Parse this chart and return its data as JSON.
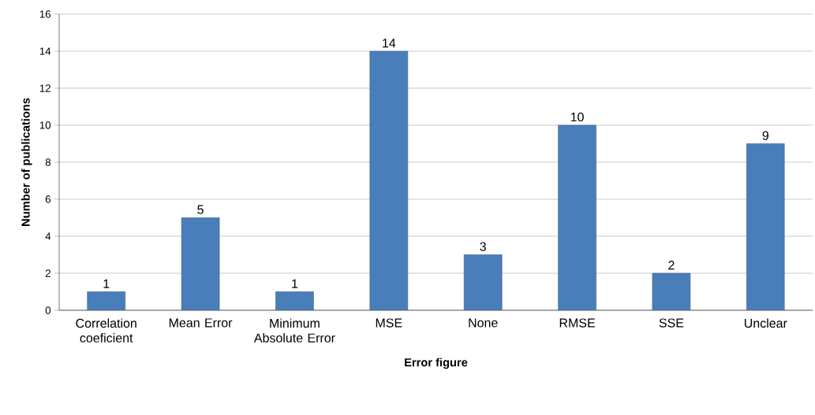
{
  "chart_data": {
    "type": "bar",
    "xlabel": "Error figure",
    "ylabel": "Number of publications",
    "categories": [
      "Correlation coeficient",
      "Mean Error",
      "Minimum Absolute Error",
      "MSE",
      "None",
      "RMSE",
      "SSE",
      "Unclear"
    ],
    "values": [
      1,
      5,
      1,
      14,
      3,
      10,
      2,
      9
    ],
    "color": "#4a7ebb",
    "ylim": [
      0,
      16
    ],
    "yticks": [
      0,
      2,
      4,
      6,
      8,
      10,
      12,
      14,
      16
    ],
    "grid": "y",
    "data_labels": true
  }
}
